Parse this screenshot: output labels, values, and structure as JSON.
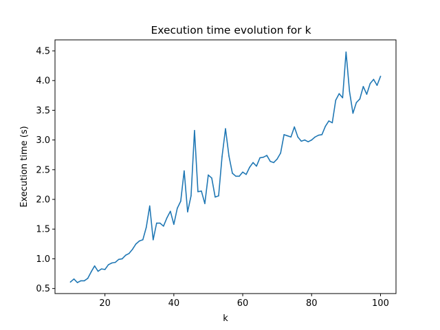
{
  "chart_data": {
    "type": "line",
    "title": "Execution time evolution for k",
    "xlabel": "k",
    "ylabel": "Execution time (s)",
    "xlim": [
      5.5,
      104.5
    ],
    "ylim": [
      0.415,
      4.685
    ],
    "xticks": [
      20,
      40,
      60,
      80,
      100
    ],
    "yticks": [
      0.5,
      1.0,
      1.5,
      2.0,
      2.5,
      3.0,
      3.5,
      4.0,
      4.5
    ],
    "xtick_labels": [
      "20",
      "40",
      "60",
      "80",
      "100"
    ],
    "ytick_labels": [
      "0.5",
      "1.0",
      "1.5",
      "2.0",
      "2.5",
      "3.0",
      "3.5",
      "4.0",
      "4.5"
    ],
    "grid": false,
    "color": "#1f77b4",
    "series": [
      {
        "x": [
          10,
          11,
          12,
          13,
          14,
          15,
          16,
          17,
          18,
          19,
          20,
          21,
          22,
          23,
          24,
          25,
          26,
          27,
          28,
          29,
          30,
          31,
          32,
          33,
          34,
          35,
          36,
          37,
          38,
          39,
          40,
          41,
          42,
          43,
          44,
          45,
          46,
          47,
          48,
          49,
          50,
          51,
          52,
          53,
          54,
          55,
          56,
          57,
          58,
          59,
          60,
          61,
          62,
          63,
          64,
          65,
          66,
          67,
          68,
          69,
          70,
          71,
          72,
          73,
          74,
          75,
          76,
          77,
          78,
          79,
          80,
          81,
          82,
          83,
          84,
          85,
          86,
          87,
          88,
          89,
          90,
          91,
          92,
          93,
          94,
          95,
          96,
          97,
          98,
          99,
          100
        ],
        "y": [
          0.61,
          0.66,
          0.6,
          0.63,
          0.63,
          0.67,
          0.78,
          0.88,
          0.79,
          0.83,
          0.82,
          0.9,
          0.93,
          0.94,
          0.99,
          1.0,
          1.06,
          1.09,
          1.16,
          1.25,
          1.3,
          1.32,
          1.53,
          1.89,
          1.32,
          1.6,
          1.6,
          1.55,
          1.69,
          1.8,
          1.58,
          1.85,
          1.97,
          2.48,
          1.79,
          2.06,
          3.16,
          2.13,
          2.14,
          1.93,
          2.41,
          2.36,
          2.04,
          2.06,
          2.72,
          3.19,
          2.73,
          2.44,
          2.39,
          2.39,
          2.46,
          2.42,
          2.54,
          2.62,
          2.56,
          2.7,
          2.71,
          2.74,
          2.64,
          2.62,
          2.68,
          2.78,
          3.09,
          3.07,
          3.05,
          3.22,
          3.05,
          2.98,
          3.0,
          2.97,
          3.0,
          3.05,
          3.08,
          3.09,
          3.23,
          3.32,
          3.29,
          3.67,
          3.78,
          3.71,
          4.48,
          3.82,
          3.45,
          3.63,
          3.69,
          3.9,
          3.77,
          3.95,
          4.02,
          3.92,
          4.07
        ]
      }
    ]
  }
}
